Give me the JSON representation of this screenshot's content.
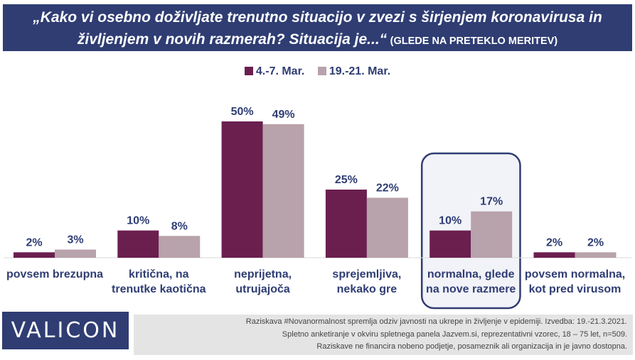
{
  "header": {
    "question": "„Kako vi osebno doživljate trenutno situacijo v zvezi s širjenjem koronavirusa in življenjem v novih razmerah? Situacija je...“",
    "note": "(GLEDE NA PRETEKLO MERITEV)"
  },
  "colors": {
    "header_bg": "#2f3d73",
    "series_1": "#6b1f4f",
    "series_2": "#b8a2ab",
    "highlight_border": "#2f3d73",
    "label_text": "#2f3d73"
  },
  "chart_data": {
    "type": "bar",
    "categories": [
      "povsem brezupna",
      "kritična, na trenutke kaotična",
      "neprijetna, utrujajoča",
      "sprejemljiva, nekako gre",
      "normalna, glede na nove razmere",
      "povsem normalna, kot pred virusom"
    ],
    "category_lines": [
      [
        "povsem brezupna"
      ],
      [
        "kritična, na",
        "trenutke kaotična"
      ],
      [
        "neprijetna,",
        "utrujajoča"
      ],
      [
        "sprejemljiva,",
        "nekako gre"
      ],
      [
        "normalna, glede",
        "na nove razmere"
      ],
      [
        "povsem normalna,",
        "kot pred virusom"
      ]
    ],
    "series": [
      {
        "name": "4.-7. Mar.",
        "values": [
          2,
          10,
          50,
          25,
          10,
          2
        ],
        "labels": [
          "2%",
          "10%",
          "50%",
          "25%",
          "10%",
          "2%"
        ]
      },
      {
        "name": "19.-21. Mar.",
        "values": [
          3,
          8,
          49,
          22,
          17,
          2
        ],
        "labels": [
          "3%",
          "8%",
          "49%",
          "22%",
          "17%",
          "2%"
        ]
      }
    ],
    "unit": "%",
    "ylim": [
      0,
      50
    ],
    "grid": false,
    "legend_position": "top",
    "highlighted_category": "normalna, glede na nove razmere"
  },
  "footer": {
    "logo": "VALICON",
    "note_lines": [
      "Raziskava #Novanormalnost spremlja odziv javnosti na ukrepe in življenje v epidemiji. Izvedba: 19.-21.3.2021.",
      "Spletno anketiranje v okviru spletnega panela Jazvem.si, reprezentativni vzorec, 18 – 75 let, n=509.",
      "Raziskave ne financira nobeno podjetje, posameznik ali organizacija in je javno dostopna."
    ]
  }
}
